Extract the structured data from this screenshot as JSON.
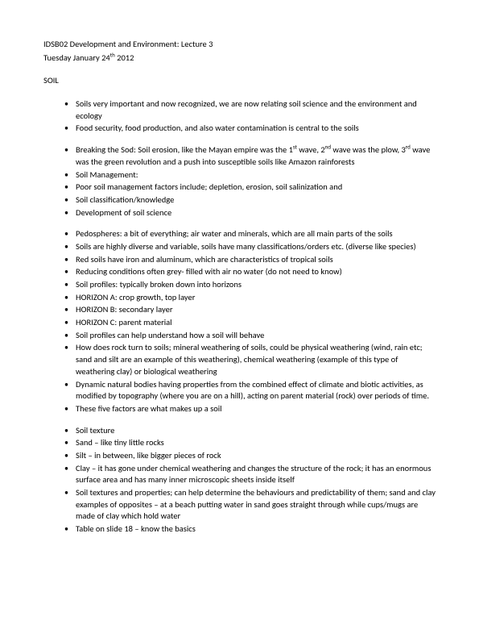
{
  "header": {
    "course": "IDSB02 Development and Environment: Lecture 3",
    "date_prefix": "Tuesday January 24",
    "date_sup": "th",
    "date_suffix": " 2012"
  },
  "section": "SOIL",
  "groups": [
    [
      "Soils very important and now recognized, we are now relating soil science and the environment and ecology",
      "Food security, food production, and also water contamination is central to the soils"
    ],
    [
      {
        "html": true,
        "pre": "Breaking the Sod: Soil erosion, like the Mayan empire was the 1",
        "sup1": "st",
        "mid1": " wave, 2",
        "sup2": "nd",
        "mid2": " wave was the plow, 3",
        "sup3": "rd",
        "post": " wave was the green revolution and a push into susceptible soils like Amazon rainforests"
      },
      "Soil Management:",
      "Poor soil management factors include; depletion, erosion, soil salinization and",
      "Soil classification/knowledge",
      "Development of soil science"
    ],
    [
      "Pedospheres: a bit of everything; air water and minerals, which are all main parts of the soils",
      "Soils are highly diverse and variable, soils have many classifications/orders etc. (diverse like species)",
      "Red soils have iron and aluminum, which are characteristics of tropical soils",
      "Reducing conditions often grey- filled with air no water (do not need to know)",
      "Soil profiles: typically broken down into horizons",
      "HORIZON A: crop growth, top layer",
      "HORIZON B: secondary layer",
      "HORIZON C: parent material",
      "Soil profiles can help understand how a soil will behave",
      "How does rock turn to soils; mineral weathering of soils, could be physical weathering (wind, rain etc; sand and silt are an example of this weathering), chemical weathering (example of this type of weathering clay) or biological weathering",
      "Dynamic natural bodies having properties from the combined effect of climate and biotic activities, as modified by topography (where you are on a hill), acting on parent material (rock) over periods of time.",
      "These five factors are what makes up a soil"
    ],
    [
      "Soil texture",
      "Sand – like tiny little rocks",
      "Silt – in between, like bigger pieces of rock",
      "Clay – it has gone under chemical weathering and changes the structure of the rock; it has an enormous surface area and has many inner microscopic sheets inside itself",
      "Soil textures and properties; can help determine the behaviours and predictability of them; sand and clay examples of opposites – at a beach putting water in sand goes straight through while cups/mugs are made of clay which hold water",
      "Table on slide 18 – know the basics"
    ]
  ]
}
